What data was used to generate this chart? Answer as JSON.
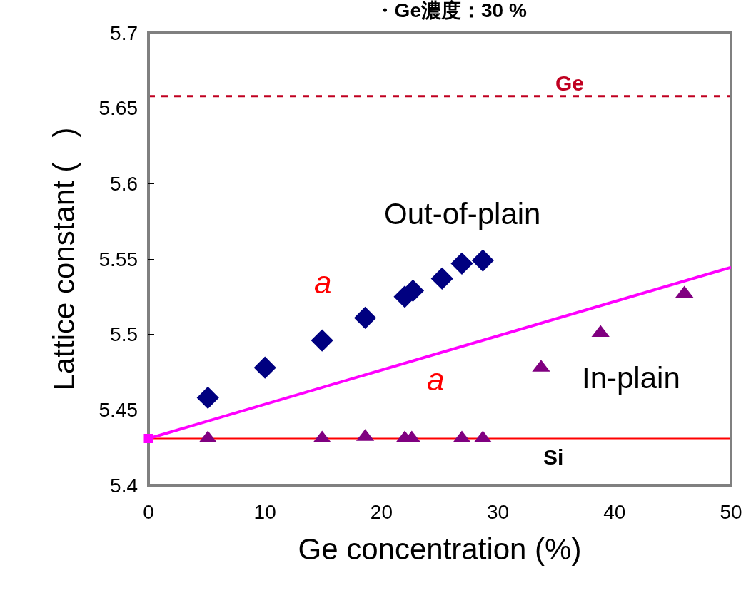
{
  "chart_data": {
    "type": "scatter",
    "title": "・Ge濃度：30 %",
    "xlabel": "Ge concentration (%)",
    "ylabel": "Lattice constant (   )",
    "xlim": [
      0,
      50
    ],
    "xticks": [
      0,
      10,
      20,
      30,
      40,
      50
    ],
    "ylim": [
      5.4,
      5.7
    ],
    "yticks": [
      5.4,
      5.45,
      5.5,
      5.55,
      5.6,
      5.65,
      5.7
    ],
    "grid": false,
    "legend": false,
    "series": [
      {
        "type": "line",
        "marker": "none",
        "line_style": "solid",
        "color": "#ff00ff",
        "x": [
          0,
          50
        ],
        "values": [
          5.431,
          5.5445
        ]
      },
      {
        "marker": "square",
        "color": "#ff00ff",
        "x": [
          0
        ],
        "values": [
          5.431
        ]
      },
      {
        "name": "Out-of-plain",
        "marker": "diamond",
        "color": "#000080",
        "x": [
          5.1,
          10.0,
          14.9,
          18.6,
          22.0,
          22.7,
          25.2,
          26.9,
          28.7
        ],
        "values": [
          5.458,
          5.478,
          5.496,
          5.511,
          5.525,
          5.529,
          5.537,
          5.547,
          5.549
        ]
      },
      {
        "name": "In-plain",
        "marker": "triangle",
        "color": "#800080",
        "x": [
          5.1,
          14.9,
          18.6,
          22.0,
          22.6,
          26.9,
          28.7,
          33.7,
          38.8,
          46.0
        ],
        "values": [
          5.431,
          5.431,
          5.432,
          5.431,
          5.431,
          5.431,
          5.431,
          5.478,
          5.501,
          5.527
        ]
      }
    ],
    "ref_lines": [
      {
        "axis": "y",
        "value": 5.658,
        "label": "Ge",
        "color": "#c00020",
        "line_style": "dashed"
      },
      {
        "axis": "y",
        "value": 5.431,
        "label": "Si",
        "color": "#ff0000",
        "line_style": "solid"
      }
    ],
    "annotations": [
      "a",
      "a"
    ]
  }
}
